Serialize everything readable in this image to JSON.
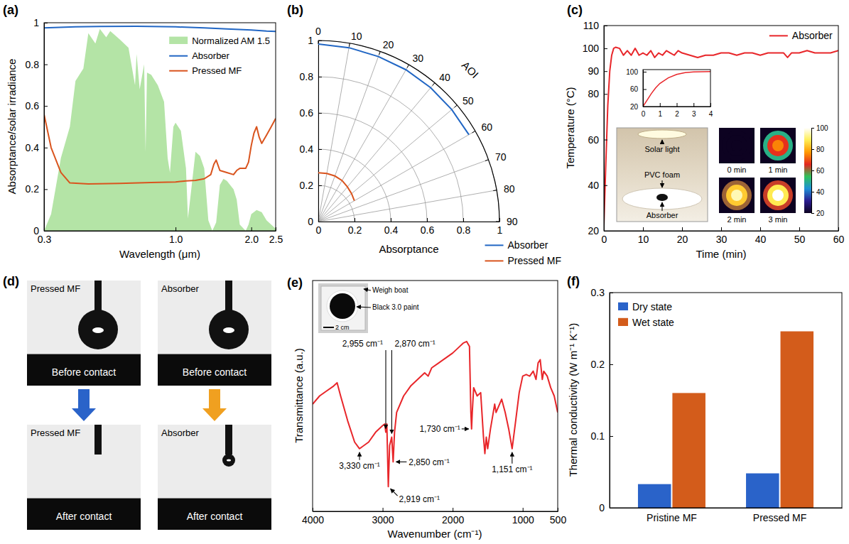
{
  "chart_data": [
    {
      "panel_label": "(a)",
      "type": "line",
      "x_label": "Wavelength (μm)",
      "y_label": "Absorptance/solar irradiance",
      "log": "x",
      "xlim": [
        0.3,
        2.5
      ],
      "xticks": [
        0.3,
        {
          "value": 1,
          "label": "1.0"
        },
        {
          "value": 2,
          "label": "2.0"
        },
        2.5
      ],
      "ylim": [
        0,
        1
      ],
      "yticks": [
        0,
        0.2,
        0.4,
        0.6,
        0.8,
        1
      ],
      "legend": "upper right",
      "series": [
        {
          "name": "Normalized AM 1.5",
          "type": "area",
          "color": "#b4e4a6",
          "x": [
            0.3,
            0.32,
            0.35,
            0.38,
            0.4,
            0.43,
            0.45,
            0.48,
            0.5,
            0.53,
            0.55,
            0.6,
            0.65,
            0.69,
            0.7,
            0.72,
            0.75,
            0.76,
            0.77,
            0.8,
            0.85,
            0.9,
            0.93,
            0.95,
            0.98,
            1.0,
            1.05,
            1.1,
            1.12,
            1.15,
            1.2,
            1.25,
            1.3,
            1.35,
            1.4,
            1.45,
            1.5,
            1.55,
            1.6,
            1.7,
            1.75,
            1.8,
            1.9,
            1.95,
            2.0,
            2.1,
            2.2,
            2.3,
            2.4,
            2.5
          ],
          "values": [
            0,
            0.08,
            0.35,
            0.5,
            0.72,
            0.78,
            0.95,
            0.9,
            0.97,
            0.93,
            0.96,
            0.92,
            0.88,
            0.7,
            0.85,
            0.68,
            0.8,
            0.38,
            0.76,
            0.75,
            0.7,
            0.62,
            0.35,
            0.28,
            0.5,
            0.52,
            0.48,
            0.3,
            0.06,
            0.18,
            0.38,
            0.36,
            0.3,
            0.05,
            0,
            0.04,
            0.22,
            0.25,
            0.24,
            0.2,
            0.15,
            0.03,
            0,
            0.03,
            0.08,
            0.1,
            0.09,
            0.05,
            0.03,
            0.01
          ]
        },
        {
          "name": "Absorber",
          "color": "#2166c4",
          "x": [
            0.3,
            0.4,
            0.5,
            0.7,
            1.0,
            1.3,
            1.6,
            2.0,
            2.3,
            2.5
          ],
          "values": [
            0.975,
            0.98,
            0.982,
            0.983,
            0.98,
            0.975,
            0.97,
            0.965,
            0.96,
            0.958
          ]
        },
        {
          "name": "Pressed MF",
          "color": "#d9541e",
          "x": [
            0.3,
            0.32,
            0.35,
            0.38,
            0.45,
            0.6,
            0.8,
            1.0,
            1.1,
            1.2,
            1.3,
            1.38,
            1.42,
            1.45,
            1.5,
            1.6,
            1.7,
            1.75,
            1.8,
            1.9,
            1.95,
            2.0,
            2.05,
            2.1,
            2.15,
            2.2,
            2.3,
            2.4,
            2.5
          ],
          "values": [
            0.56,
            0.4,
            0.28,
            0.23,
            0.225,
            0.228,
            0.232,
            0.235,
            0.24,
            0.242,
            0.25,
            0.27,
            0.32,
            0.34,
            0.29,
            0.28,
            0.27,
            0.29,
            0.3,
            0.3,
            0.33,
            0.41,
            0.47,
            0.5,
            0.45,
            0.42,
            0.46,
            0.5,
            0.54
          ]
        }
      ]
    },
    {
      "panel_label": "(b)",
      "type": "polar",
      "x_label": "AOI",
      "y_label": "Absorptance",
      "xlim": [
        0,
        90
      ],
      "xticks": [
        0,
        10,
        20,
        30,
        40,
        50,
        60,
        70,
        80,
        90
      ],
      "ylim": [
        0,
        1
      ],
      "yticks": [
        0,
        0.2,
        0.4,
        0.6,
        0.8,
        1
      ],
      "grid": true,
      "legend": "lower right",
      "series": [
        {
          "name": "Absorber",
          "color": "#2166c4",
          "x": [
            0,
            10,
            20,
            30,
            40,
            50,
            60
          ],
          "values": [
            0.98,
            0.975,
            0.97,
            0.968,
            0.965,
            0.962,
            0.96
          ]
        },
        {
          "name": "Pressed MF",
          "color": "#d9541e",
          "x": [
            0,
            10,
            20,
            30,
            40,
            50,
            60
          ],
          "values": [
            0.27,
            0.27,
            0.268,
            0.262,
            0.25,
            0.24,
            0.23
          ]
        }
      ]
    },
    {
      "panel_label": "(c)",
      "type": "line",
      "x_label": "Time (min)",
      "y_label": "Temperature (°C)",
      "xlim": [
        0,
        60
      ],
      "xticks": [
        0,
        10,
        20,
        30,
        40,
        50,
        60
      ],
      "ylim": [
        20,
        110
      ],
      "yticks": [
        20,
        40,
        60,
        80,
        90,
        100,
        110
      ],
      "legend": "upper right",
      "series": [
        {
          "name": "Absorber",
          "color": "#e8262a",
          "x": [
            0,
            0.5,
            1,
            1.5,
            2,
            2.5,
            3,
            4,
            5,
            6,
            7,
            8,
            9,
            10,
            11,
            12,
            13,
            14,
            15,
            16,
            17,
            18,
            19,
            20,
            22,
            24,
            26,
            28,
            30,
            32,
            34,
            36,
            38,
            40,
            42,
            44,
            46,
            47,
            48,
            50,
            52,
            54,
            56,
            58,
            60
          ],
          "values": [
            22,
            50,
            75,
            90,
            97,
            100,
            100.5,
            100,
            97,
            99,
            97,
            100,
            97,
            98,
            97,
            99,
            96,
            98,
            97,
            99,
            98,
            97,
            99,
            98,
            97,
            96,
            97,
            97,
            98,
            98,
            97,
            98,
            98,
            97,
            98,
            98,
            98,
            96,
            98,
            98,
            99,
            98,
            98,
            98,
            99
          ]
        }
      ],
      "inset": {
        "type": "line",
        "color": "#e8262a",
        "xlim": [
          0,
          4
        ],
        "xticks": [
          0,
          1,
          2,
          3,
          4
        ],
        "ylim": [
          20,
          105
        ],
        "yticks": [
          20,
          60,
          100
        ],
        "x": [
          0,
          0.25,
          0.5,
          0.75,
          1,
          1.5,
          2,
          2.5,
          3,
          3.5,
          4
        ],
        "values": [
          20,
          35,
          50,
          63,
          73,
          86,
          94,
          98,
          99.5,
          100,
          100.5
        ]
      },
      "photo_labels": [
        "Solar light",
        "PVC foam",
        "Absorber"
      ],
      "thermal_images": [
        {
          "label": "0 min",
          "temperature": 20
        },
        {
          "label": "1 min",
          "temperature": 75
        },
        {
          "label": "2 min",
          "temperature": 95
        },
        {
          "label": "3 min",
          "temperature": 100
        }
      ],
      "colorbar": {
        "range": [
          20,
          100
        ],
        "ticks": [
          20,
          40,
          60,
          80,
          100
        ]
      }
    },
    {
      "panel_label": "(d)",
      "type": "image",
      "images": [
        {
          "sample": "Pressed MF",
          "caption": "Before contact"
        },
        {
          "sample": "Absorber",
          "caption": "Before contact"
        },
        {
          "sample": "Pressed MF",
          "caption": "After contact"
        },
        {
          "sample": "Absorber",
          "caption": "After contact"
        }
      ]
    },
    {
      "panel_label": "(e)",
      "type": "line",
      "x_label": "Wavenumber (cm⁻¹)",
      "y_label": "Transmittance (a.u.)",
      "xlim": [
        4000,
        500
      ],
      "xticks": [
        4000,
        3000,
        2000,
        1000,
        500
      ],
      "ylim": [
        -0.1,
        1.3
      ],
      "tick_labels": "x",
      "series": [
        {
          "color": "#e8262a",
          "x": [
            4000,
            3900,
            3800,
            3700,
            3650,
            3600,
            3500,
            3400,
            3330,
            3200,
            3100,
            3000,
            2970,
            2955,
            2940,
            2919,
            2900,
            2870,
            2850,
            2830,
            2800,
            2700,
            2600,
            2500,
            2400,
            2350,
            2300,
            2200,
            2100,
            2000,
            1900,
            1850,
            1800,
            1760,
            1740,
            1730,
            1720,
            1700,
            1650,
            1600,
            1560,
            1540,
            1520,
            1500,
            1460,
            1400,
            1380,
            1300,
            1250,
            1200,
            1151,
            1100,
            1050,
            1000,
            950,
            900,
            850,
            810,
            780,
            750,
            720,
            700,
            650,
            600,
            550,
            500
          ],
          "values": [
            0.55,
            0.6,
            0.63,
            0.66,
            0.68,
            0.6,
            0.45,
            0.32,
            0.28,
            0.32,
            0.38,
            0.42,
            0.43,
            0.38,
            0.43,
            0.05,
            0.3,
            0.35,
            0.2,
            0.38,
            0.5,
            0.6,
            0.66,
            0.7,
            0.74,
            0.72,
            0.77,
            0.8,
            0.83,
            0.86,
            0.9,
            0.92,
            0.93,
            0.9,
            0.5,
            0.4,
            0.5,
            0.65,
            0.6,
            0.62,
            0.35,
            0.25,
            0.35,
            0.28,
            0.4,
            0.55,
            0.5,
            0.58,
            0.5,
            0.4,
            0.28,
            0.45,
            0.62,
            0.72,
            0.73,
            0.72,
            0.75,
            0.7,
            0.8,
            0.82,
            0.7,
            0.75,
            0.72,
            0.65,
            0.6,
            0.5
          ]
        }
      ],
      "annotations": [
        {
          "text": "3,330 cm⁻¹",
          "x": 3330,
          "y": 0.28
        },
        {
          "text": "2,955 cm⁻¹",
          "x": 2955,
          "y": 0.38
        },
        {
          "text": "2,870 cm⁻¹",
          "x": 2870,
          "y": 0.35
        },
        {
          "text": "2,850 cm⁻¹",
          "x": 2850,
          "y": 0.2
        },
        {
          "text": "2,919 cm⁻¹",
          "x": 2919,
          "y": 0.05
        },
        {
          "text": "1,730 cm⁻¹",
          "x": 1730,
          "y": 0.4
        },
        {
          "text": "1,151 cm⁻¹",
          "x": 1151,
          "y": 0.28
        }
      ],
      "inset_labels": [
        "Weigh boat",
        "Black 3.0 paint",
        "2 cm"
      ]
    },
    {
      "panel_label": "(f)",
      "type": "bar",
      "y_label": "Thermal conductivity (W m⁻¹ K⁻¹)",
      "categories": [
        "Pristine MF",
        "Pressed MF"
      ],
      "ylim": [
        0,
        0.3
      ],
      "yticks": [
        0,
        0.1,
        0.2,
        0.3
      ],
      "legend": "upper left",
      "series": [
        {
          "name": "Dry state",
          "color": "#2a63c9",
          "values": [
            0.033,
            0.048
          ]
        },
        {
          "name": "Wet state",
          "color": "#d35c1b",
          "values": [
            0.16,
            0.246
          ]
        }
      ]
    }
  ]
}
